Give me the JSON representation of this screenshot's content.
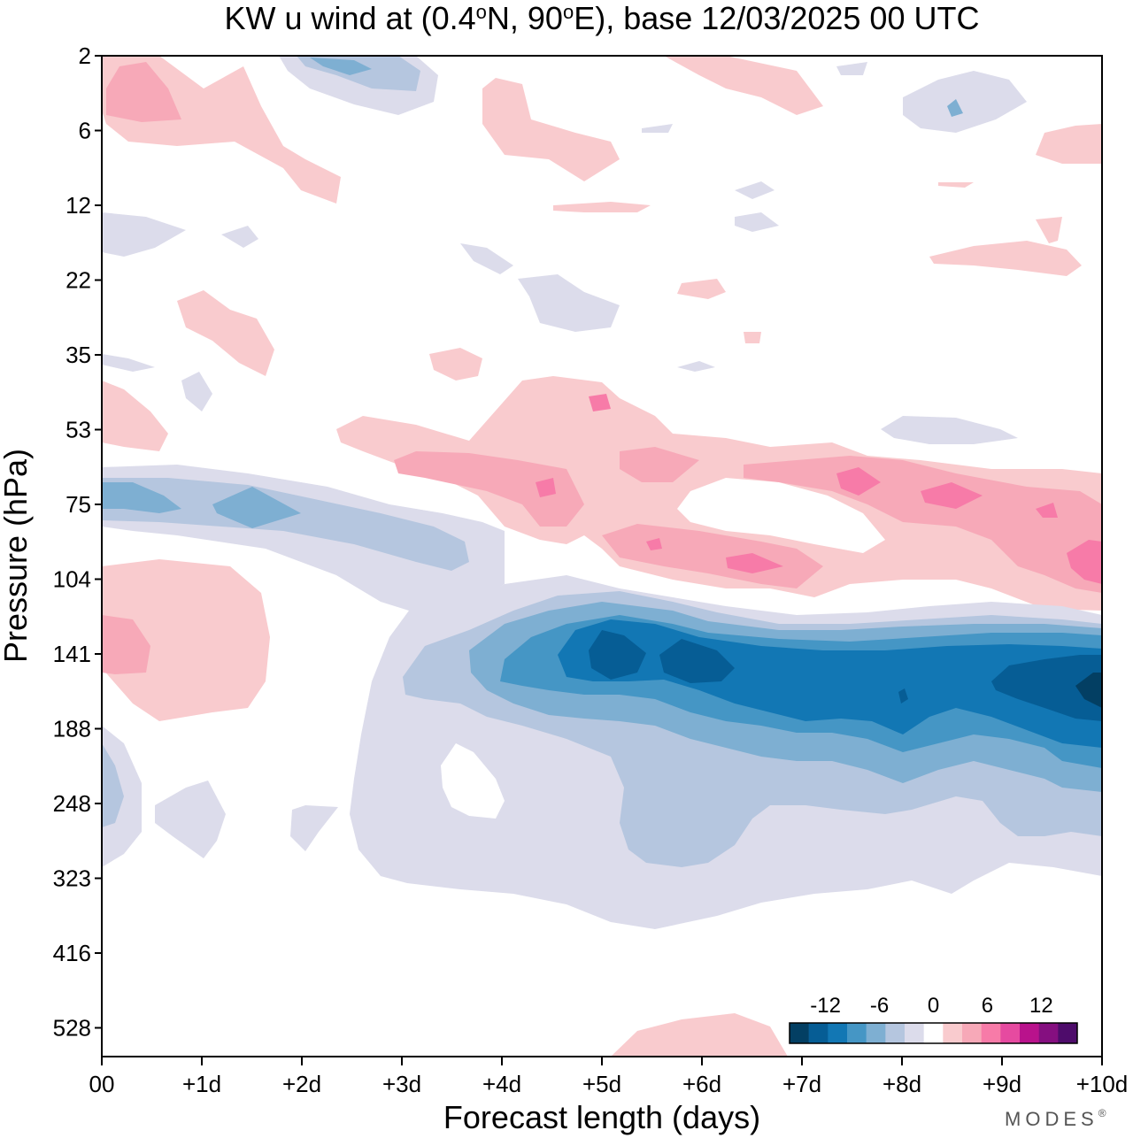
{
  "title": {
    "prefix": "KW u wind at (0.4",
    "deg1": "o",
    "middle": "N, 90",
    "deg2": "o",
    "suffix": "E),  base 12/03/2025  00 UTC"
  },
  "brand": "MODES",
  "brand_mark": "®",
  "chart_data": {
    "type": "heatmap",
    "xlabel": "Forecast length (days)",
    "ylabel": "Pressure (hPa)",
    "x_ticks": [
      "00",
      "+1d",
      "+2d",
      "+3d",
      "+4d",
      "+5d",
      "+6d",
      "+7d",
      "+8d",
      "+9d",
      "+10d"
    ],
    "y_ticks": [
      "2",
      "6",
      "12",
      "22",
      "35",
      "53",
      "75",
      "104",
      "141",
      "188",
      "248",
      "323",
      "416",
      "528"
    ],
    "y_inverted": true,
    "xlim_days": [
      0,
      10
    ],
    "colorbar": {
      "tick_labels": [
        "-12",
        "-6",
        "0",
        "6",
        "12"
      ],
      "tick_values": [
        -12,
        -6,
        0,
        6,
        12
      ],
      "colors": [
        "#033f63",
        "#065d95",
        "#1277b4",
        "#4596c5",
        "#7eafd2",
        "#b5c6df",
        "#dcdceb",
        "#ffffff",
        "#f9cbce",
        "#f7a9b8",
        "#f77ba8",
        "#e64aa0",
        "#b9128c",
        "#850f80",
        "#4e0c6b"
      ],
      "bounds": [
        -14,
        -12,
        -10,
        -8,
        -6,
        -4,
        -2,
        2,
        4,
        6,
        8,
        10,
        12,
        14
      ]
    },
    "features": [
      {
        "name": "upper-tropospheric easterly jet",
        "x_days": [
          4.0,
          10.0
        ],
        "pressure_hPa": [
          120,
          250
        ],
        "min_value": -14
      },
      {
        "name": "lower-stratospheric westerlies",
        "x_days": [
          2.5,
          10.0
        ],
        "pressure_hPa": [
          55,
          105
        ],
        "max_value": 8
      },
      {
        "name": "early lower-stratospheric easterlies",
        "x_days": [
          0.0,
          3.8
        ],
        "pressure_hPa": [
          62,
          100
        ],
        "min_value": -6
      }
    ]
  }
}
